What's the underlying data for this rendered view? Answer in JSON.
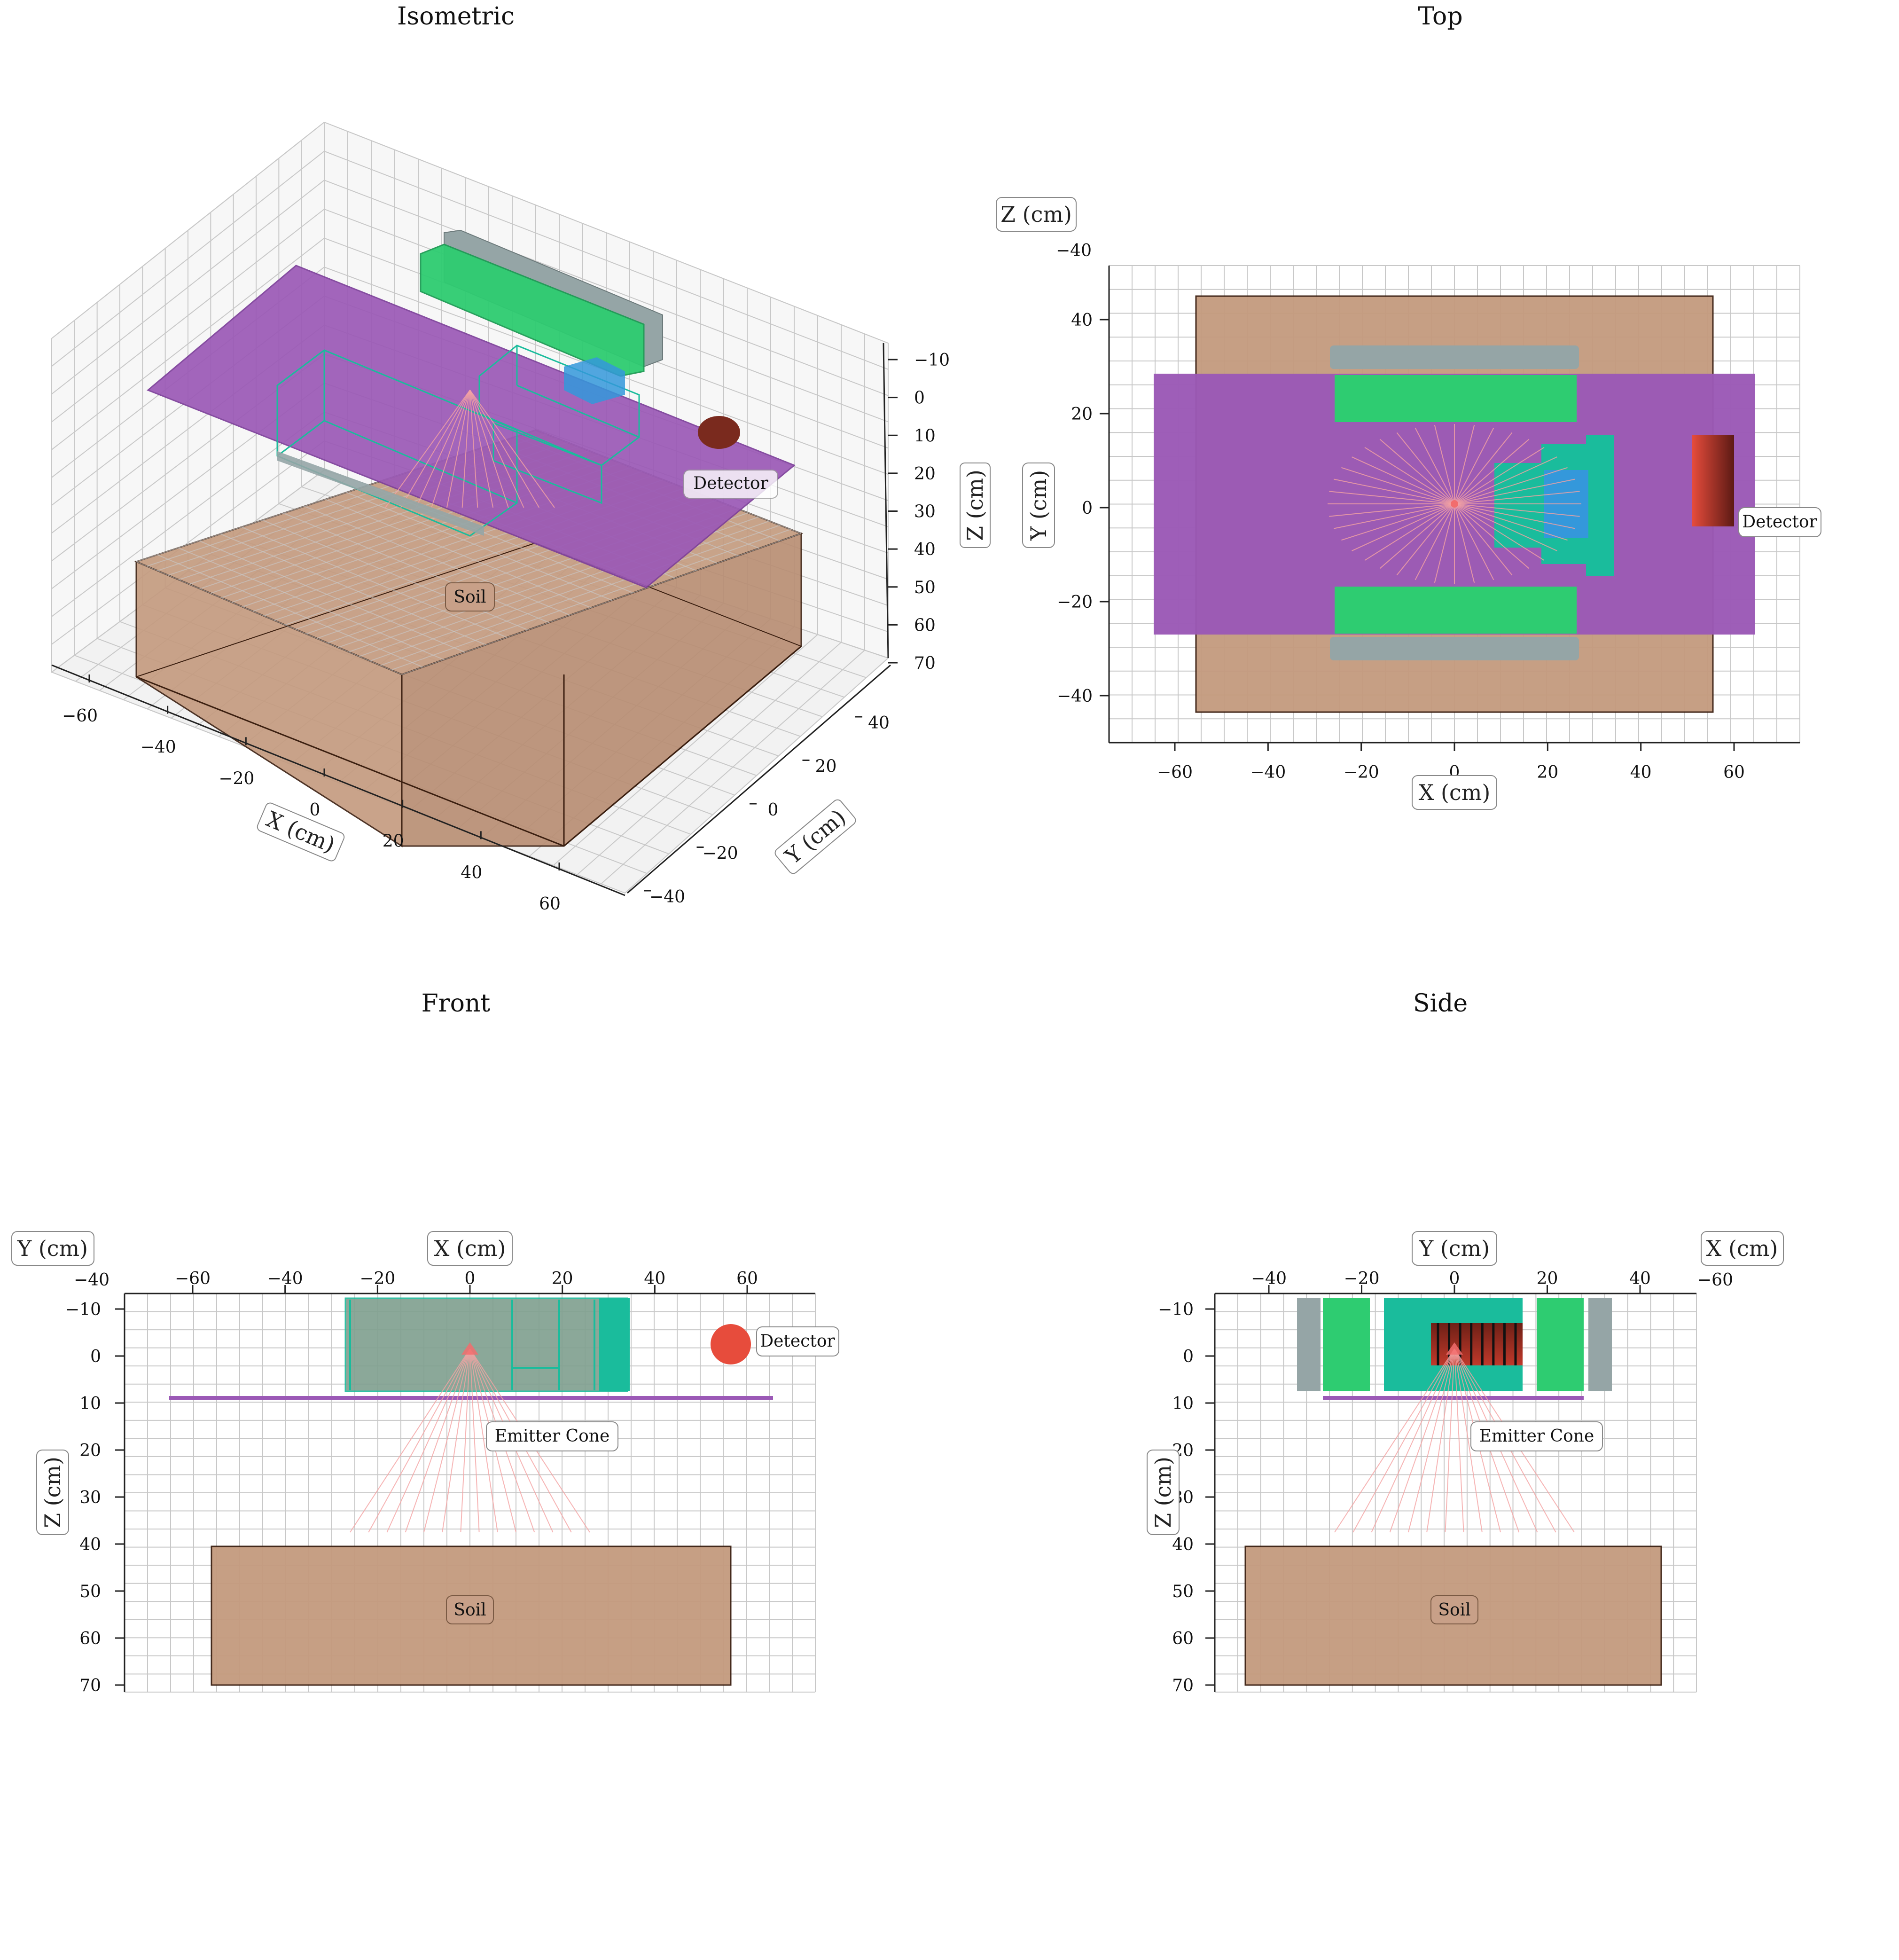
{
  "panels": {
    "isometric": {
      "title": "Isometric",
      "x_label": "X (cm)",
      "y_label": "Y (cm)",
      "z_label": "Z (cm)",
      "x_ticks": [
        "−60",
        "−40",
        "−20",
        "0",
        "20",
        "40",
        "60"
      ],
      "y_ticks": [
        "−40",
        "−20",
        "0",
        "20",
        "40"
      ],
      "z_ticks": [
        "−10",
        "0",
        "10",
        "20",
        "30",
        "40",
        "50",
        "60",
        "70"
      ],
      "soil_label": "Soil",
      "detector_label": "Detector"
    },
    "top": {
      "title": "Top",
      "corner_label": "Z (cm)",
      "x_label": "X (cm)",
      "y_label": "Y (cm)",
      "corner_ticks": "−40",
      "x_ticks": [
        "−60",
        "−40",
        "−20",
        "0",
        "20",
        "40",
        "60"
      ],
      "y_ticks": [
        "40",
        "20",
        "0",
        "−20",
        "−40"
      ],
      "detector_label": "Detector"
    },
    "front": {
      "title": "Front",
      "corner_label": "Y (cm)",
      "x_label": "X (cm)",
      "z_label": "Z (cm)",
      "corner_ticks": "−40",
      "x_ticks": [
        "−60",
        "−40",
        "−20",
        "0",
        "20",
        "40",
        "60"
      ],
      "z_ticks": [
        "−10",
        "0",
        "10",
        "20",
        "30",
        "40",
        "50",
        "60",
        "70"
      ],
      "soil_label": "Soil",
      "detector_label": "Detector",
      "emitter_label": "Emitter Cone"
    },
    "side": {
      "title": "Side",
      "y_label": "Y (cm)",
      "corner_label": "X (cm)",
      "z_label": "Z (cm)",
      "corner_ticks": "−60",
      "y_ticks": [
        "−40",
        "−20",
        "0",
        "20",
        "40"
      ],
      "z_ticks": [
        "−10",
        "0",
        "10",
        "20",
        "30",
        "40",
        "50",
        "60",
        "70"
      ],
      "soil_label": "Soil",
      "emitter_label": "Emitter Cone"
    }
  },
  "colors": {
    "soil": "#c49a7e",
    "soil_edge": "#3b1f10",
    "purple_plate": "#9b59b6",
    "green_block": "#2ecc71",
    "gray_block": "#95a5a6",
    "teal_block": "#1abc9c",
    "blue_block": "#3498db",
    "detector": "#e74c3c",
    "detector_dark": "#5c1a14",
    "ray": "#f4a3a3"
  }
}
